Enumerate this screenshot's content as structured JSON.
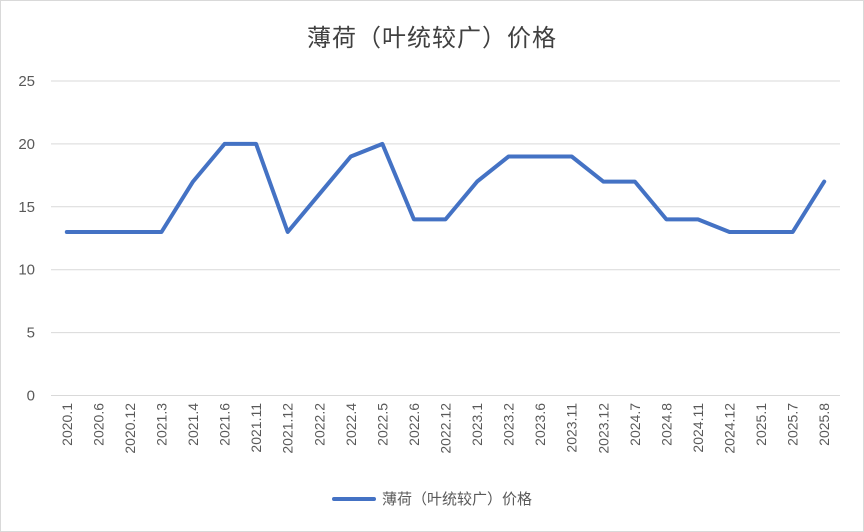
{
  "chart_data": {
    "type": "line",
    "title": "薄荷（叶统较广）价格",
    "xlabel": "",
    "ylabel": "",
    "ylim": [
      0,
      25
    ],
    "yticks": [
      0,
      5,
      10,
      15,
      20,
      25
    ],
    "grid": true,
    "legend_position": "bottom",
    "categories": [
      "2020.1",
      "2020.6",
      "2020.12",
      "2021.3",
      "2021.4",
      "2021.6",
      "2021.11",
      "2021.12",
      "2022.2",
      "2022.4",
      "2022.5",
      "2022.6",
      "2022.12",
      "2023.1",
      "2023.2",
      "2023.6",
      "2023.11",
      "2023.12",
      "2024.7",
      "2024.8",
      "2024.11",
      "2024.12",
      "2025.1",
      "2025.7",
      "2025.8"
    ],
    "series": [
      {
        "name": "薄荷（叶统较广）价格",
        "color": "#4472c4",
        "values": [
          13,
          13,
          13,
          13,
          17,
          20,
          20,
          13,
          16,
          19,
          20,
          14,
          14,
          17,
          19,
          19,
          19,
          17,
          17,
          14,
          14,
          13,
          13,
          13,
          17
        ]
      }
    ]
  },
  "legend": {
    "label": "薄荷（叶统较广）价格"
  }
}
